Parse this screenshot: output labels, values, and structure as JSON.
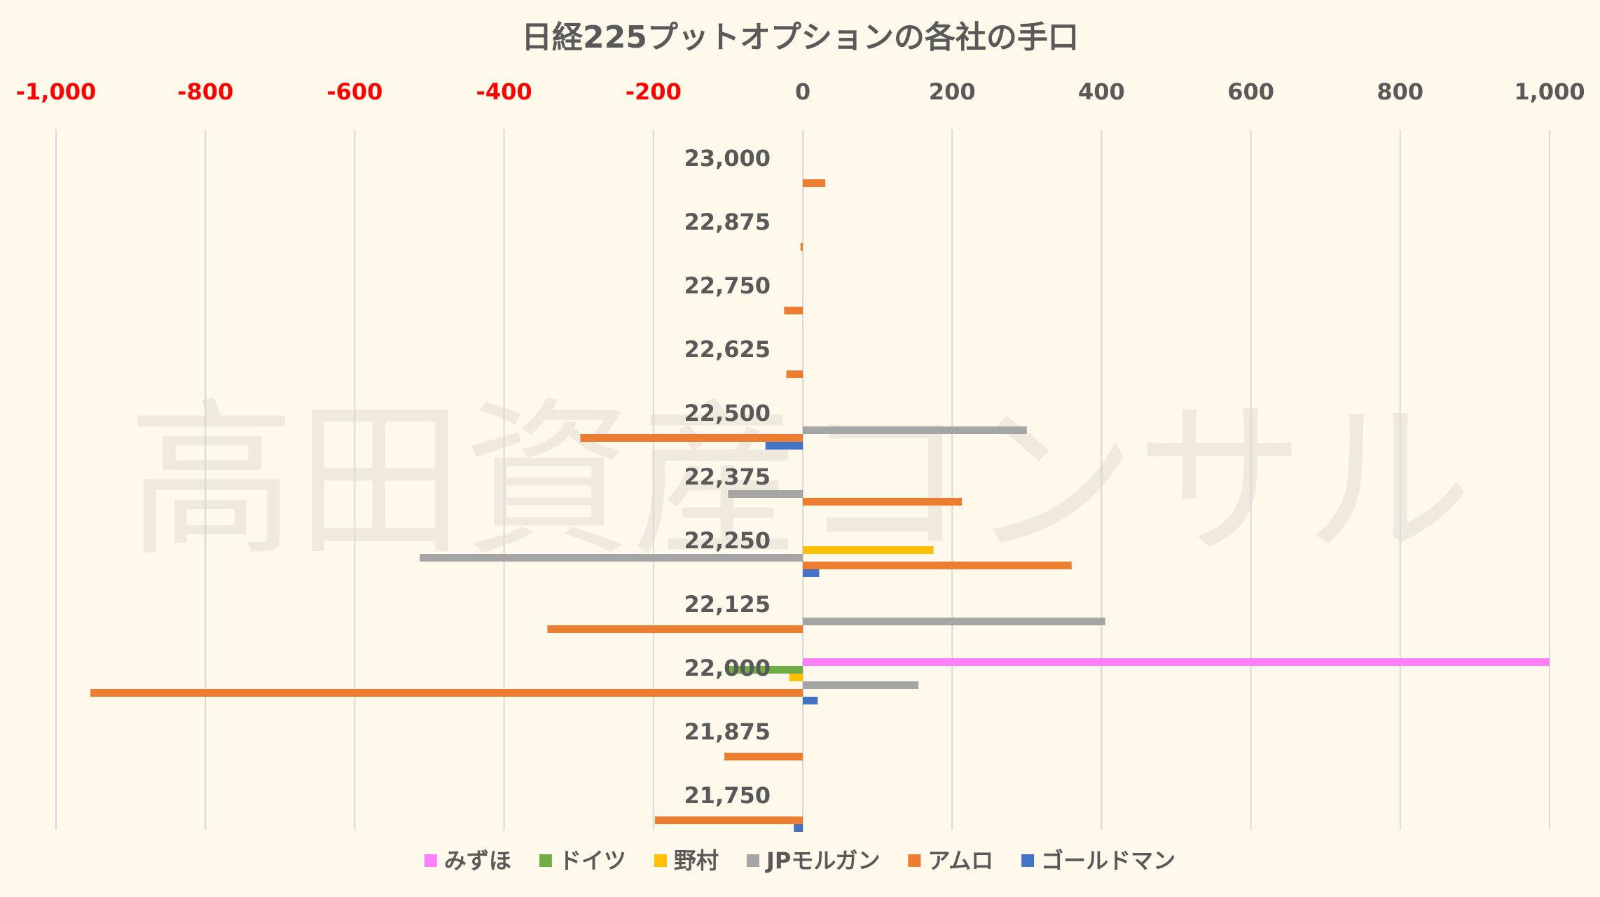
{
  "chart_data": {
    "type": "bar",
    "orientation": "horizontal",
    "title": "日経225プットオプションの各社の手口",
    "watermark": "高田資産コンサル",
    "xlim": [
      -1000,
      1000
    ],
    "xticks": [
      -1000,
      -800,
      -600,
      -400,
      -200,
      0,
      200,
      400,
      600,
      800,
      1000
    ],
    "xtick_labels": [
      "-1,000",
      "-800",
      "-600",
      "-400",
      "-200",
      "0",
      "200",
      "400",
      "600",
      "800",
      "1,000"
    ],
    "negative_tick_color": "#ff0000",
    "positive_tick_color": "#595959",
    "grid": true,
    "legend_position": "bottom",
    "categories": [
      "23,000",
      "22,875",
      "22,750",
      "22,625",
      "22,500",
      "22,375",
      "22,250",
      "22,125",
      "22,000",
      "21,875",
      "21,750"
    ],
    "series": [
      {
        "name": "みずほ",
        "color": "#ff80ff",
        "values": [
          0,
          0,
          0,
          0,
          0,
          0,
          0,
          0,
          1000,
          0,
          0
        ]
      },
      {
        "name": "ドイツ",
        "color": "#70ad47",
        "values": [
          0,
          0,
          0,
          0,
          0,
          0,
          0,
          0,
          -100,
          0,
          0
        ]
      },
      {
        "name": "野村",
        "color": "#ffc000",
        "values": [
          0,
          0,
          0,
          0,
          0,
          0,
          175,
          0,
          -18,
          0,
          0
        ]
      },
      {
        "name": "JPモルガン",
        "color": "#a5a5a5",
        "values": [
          0,
          0,
          0,
          0,
          300,
          -100,
          -513,
          405,
          155,
          0,
          0
        ]
      },
      {
        "name": "アムロ",
        "color": "#ed7d31",
        "values": [
          30,
          -3,
          -25,
          -22,
          -298,
          213,
          360,
          -342,
          -954,
          -105,
          -198
        ]
      },
      {
        "name": "ゴールドマン",
        "color": "#4472c4",
        "values": [
          0,
          0,
          0,
          0,
          -50,
          0,
          22,
          0,
          20,
          0,
          -12
        ]
      }
    ]
  }
}
